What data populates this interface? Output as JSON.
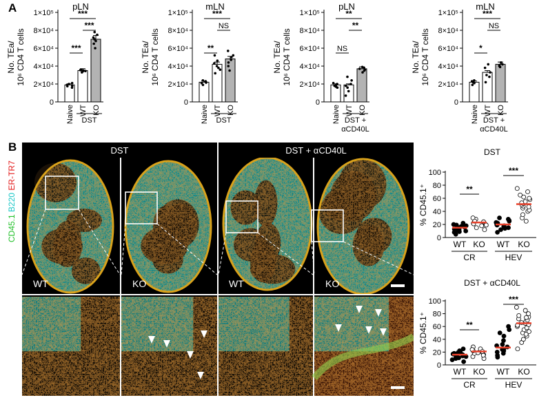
{
  "panel_a": {
    "letter": "A",
    "ylabel_line1": "No. TEa/",
    "ylabel_line2": "10⁶ CD4 T cells",
    "ytick_labels": [
      "0",
      "2×10⁴",
      "4×10⁴",
      "6×10⁴",
      "8×10⁴",
      "1×10⁵"
    ]
  },
  "panel_b": {
    "letter": "B",
    "side_label": {
      "cd45": "CD45.1",
      "b220": "B220",
      "ertr7": "ER-TR7"
    },
    "header_dst": "DST",
    "header_dst_acd40l": "DST + αCD40L",
    "tile_labels": [
      "WT",
      "KO",
      "WT",
      "KO"
    ],
    "scatter_ylabel": "% CD45.1⁺",
    "ytick_labels": [
      "0",
      "20",
      "40",
      "60",
      "80",
      "100"
    ]
  },
  "chart_data": [
    {
      "type": "bar",
      "title": "pLN",
      "categories": [
        "Naive",
        "WT",
        "KO"
      ],
      "values": [
        19000,
        35000,
        70000
      ],
      "points": [
        [
          16000,
          18000,
          19000,
          20000,
          21000,
          17500
        ],
        [
          33000,
          34000,
          35000,
          36000,
          35500,
          34500
        ],
        [
          60000,
          65000,
          68000,
          70000,
          72000,
          75000,
          78000
        ]
      ],
      "group_label": "DST",
      "group_span": [
        1,
        2
      ],
      "ylim": [
        0,
        100000
      ],
      "comparisons": [
        {
          "a": 0,
          "b": 1,
          "label": "***",
          "level": 1
        },
        {
          "a": 0,
          "b": 2,
          "label": "***",
          "level": 3
        },
        {
          "a": 1,
          "b": 2,
          "label": "***",
          "level": 2
        }
      ]
    },
    {
      "type": "bar",
      "title": "mLN",
      "categories": [
        "Naive",
        "WT",
        "KO"
      ],
      "values": [
        22000,
        42000,
        48000
      ],
      "points": [
        [
          19000,
          21000,
          22000,
          23000,
          24000,
          21500
        ],
        [
          32000,
          36000,
          40000,
          43000,
          46000,
          52000,
          38000
        ],
        [
          35000,
          40000,
          47000,
          52000,
          57000,
          44000,
          50000
        ]
      ],
      "group_label": "DST",
      "group_span": [
        1,
        2
      ],
      "ylim": [
        0,
        100000
      ],
      "comparisons": [
        {
          "a": 0,
          "b": 1,
          "label": "**",
          "level": 1
        },
        {
          "a": 0,
          "b": 2,
          "label": "***",
          "level": 3
        },
        {
          "a": 1,
          "b": 2,
          "label": "NS",
          "level": 2
        }
      ]
    },
    {
      "type": "bar",
      "title": "pLN",
      "categories": [
        "Naive",
        "WT",
        "KO"
      ],
      "values": [
        19000,
        19000,
        37000
      ],
      "points": [
        [
          16000,
          18000,
          19000,
          21000,
          20000,
          17000
        ],
        [
          7000,
          12000,
          16000,
          20000,
          24000,
          28000,
          18000
        ],
        [
          33000,
          35000,
          36000,
          38000,
          39000,
          37000
        ]
      ],
      "group_label": "DST + αCD40L",
      "group_span": [
        1,
        2
      ],
      "ylim": [
        0,
        100000
      ],
      "comparisons": [
        {
          "a": 0,
          "b": 1,
          "label": "NS",
          "level": 1
        },
        {
          "a": 0,
          "b": 2,
          "label": "**",
          "level": 3
        },
        {
          "a": 1,
          "b": 2,
          "label": "**",
          "level": 2
        }
      ]
    },
    {
      "type": "bar",
      "title": "mLN",
      "categories": [
        "Naive",
        "WT",
        "KO"
      ],
      "values": [
        22000,
        33000,
        42000
      ],
      "points": [
        [
          19000,
          21000,
          22000,
          24000,
          23000
        ],
        [
          22000,
          28000,
          33000,
          38000,
          42000,
          30000
        ],
        [
          39000,
          40000,
          42000,
          44000,
          41000
        ]
      ],
      "group_label": "DST + αCD40L",
      "group_span": [
        1,
        2
      ],
      "ylim": [
        0,
        100000
      ],
      "comparisons": [
        {
          "a": 0,
          "b": 1,
          "label": "*",
          "level": 1
        },
        {
          "a": 0,
          "b": 2,
          "label": "***",
          "level": 3
        },
        {
          "a": 1,
          "b": 2,
          "label": "NS",
          "level": 2
        }
      ]
    },
    {
      "type": "scatter",
      "title": "DST",
      "categories": [
        "WT",
        "KO",
        "WT",
        "KO"
      ],
      "groups": [
        "CR",
        "HEV"
      ],
      "means": [
        15,
        23,
        20,
        51
      ],
      "points": [
        [
          5,
          8,
          10,
          12,
          14,
          15,
          16,
          18,
          20,
          22,
          13,
          11,
          17,
          9,
          19
        ],
        [
          12,
          15,
          18,
          20,
          22,
          24,
          26,
          28,
          30,
          21,
          25,
          19
        ],
        [
          8,
          12,
          15,
          18,
          20,
          22,
          25,
          28,
          30,
          17,
          23,
          14,
          26,
          19
        ],
        [
          25,
          30,
          35,
          40,
          45,
          48,
          50,
          52,
          55,
          58,
          60,
          65,
          70,
          75,
          42,
          53,
          62,
          47
        ]
      ],
      "ylim": [
        0,
        100
      ],
      "comparisons": [
        {
          "a": 0,
          "b": 1,
          "label": "**"
        },
        {
          "a": 2,
          "b": 3,
          "label": "***"
        }
      ]
    },
    {
      "type": "scatter",
      "title": "DST + αCD40L",
      "categories": [
        "WT",
        "KO",
        "WT",
        "KO"
      ],
      "groups": [
        "CR",
        "HEV"
      ],
      "means": [
        16,
        21,
        27,
        65
      ],
      "points": [
        [
          5,
          8,
          10,
          12,
          14,
          15,
          16,
          18,
          20,
          22,
          25,
          11,
          17,
          13,
          19
        ],
        [
          10,
          13,
          16,
          18,
          20,
          22,
          25,
          28,
          21,
          19,
          15,
          24
        ],
        [
          12,
          15,
          18,
          20,
          22,
          25,
          28,
          32,
          38,
          45,
          50,
          55,
          60,
          24,
          30
        ],
        [
          25,
          35,
          40,
          45,
          50,
          55,
          60,
          62,
          65,
          68,
          70,
          72,
          75,
          80,
          85,
          90,
          58,
          66,
          74,
          52,
          63,
          77,
          48
        ]
      ],
      "ylim": [
        0,
        100
      ],
      "comparisons": [
        {
          "a": 0,
          "b": 1,
          "label": "**"
        },
        {
          "a": 2,
          "b": 3,
          "label": "***"
        }
      ]
    }
  ]
}
